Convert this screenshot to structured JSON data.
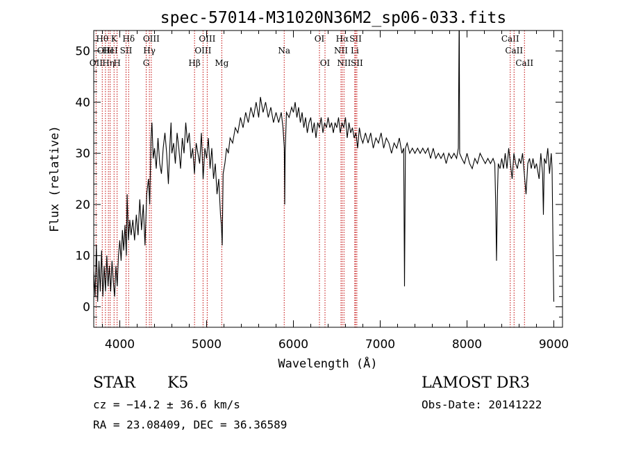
{
  "chart_data": {
    "type": "line",
    "title": "spec-57014-M31020N36M2_sp06-033.fits",
    "xlabel": "Wavelength (Å)",
    "ylabel": "Flux (relative)",
    "xlim": [
      3700,
      9100
    ],
    "ylim": [
      -4,
      54
    ],
    "xticks": [
      {
        "value": 4000,
        "label": "4000"
      },
      {
        "value": 5000,
        "label": "5000"
      },
      {
        "value": 6000,
        "label": "6000"
      },
      {
        "value": 7000,
        "label": "7000"
      },
      {
        "value": 8000,
        "label": "8000"
      },
      {
        "value": 9000,
        "label": "9000"
      }
    ],
    "yticks": [
      {
        "value": 0,
        "label": "0"
      },
      {
        "value": 10,
        "label": "10"
      },
      {
        "value": 20,
        "label": "20"
      },
      {
        "value": 30,
        "label": "30"
      },
      {
        "value": 40,
        "label": "40"
      },
      {
        "value": 50,
        "label": "50"
      }
    ],
    "spectral_lines": [
      {
        "wavelength": 3727,
        "label": "OII",
        "row": 2
      },
      {
        "wavelength": 3798,
        "label": "Hθ",
        "row": 0
      },
      {
        "wavelength": 3835,
        "label": "OIII",
        "row": 1
      },
      {
        "wavelength": 3869,
        "label": "Hη",
        "row": 2
      },
      {
        "wavelength": 3889,
        "label": "HeI",
        "row": 1
      },
      {
        "wavelength": 3934,
        "label": "K",
        "row": 0
      },
      {
        "wavelength": 3969,
        "label": "H",
        "row": 2
      },
      {
        "wavelength": 4072,
        "label": "SII",
        "row": 1
      },
      {
        "wavelength": 4102,
        "label": "Hδ",
        "row": 0
      },
      {
        "wavelength": 4304,
        "label": "G",
        "row": 2
      },
      {
        "wavelength": 4341,
        "label": "Hγ",
        "row": 1
      },
      {
        "wavelength": 4363,
        "label": "OIII",
        "row": 0
      },
      {
        "wavelength": 4861,
        "label": "Hβ",
        "row": 2
      },
      {
        "wavelength": 4959,
        "label": "OIII",
        "row": 1
      },
      {
        "wavelength": 5007,
        "label": "OIII",
        "row": 0
      },
      {
        "wavelength": 5175,
        "label": "Mg",
        "row": 2
      },
      {
        "wavelength": 5894,
        "label": "Na",
        "row": 1
      },
      {
        "wavelength": 6300,
        "label": "OI",
        "row": 0
      },
      {
        "wavelength": 6364,
        "label": "OI",
        "row": 2
      },
      {
        "wavelength": 6548,
        "label": "NII",
        "row": 1
      },
      {
        "wavelength": 6563,
        "label": "Hα",
        "row": 0
      },
      {
        "wavelength": 6583,
        "label": "NII",
        "row": 2
      },
      {
        "wavelength": 6707,
        "label": "Li",
        "row": 1
      },
      {
        "wavelength": 6716,
        "label": "SII",
        "row": 0
      },
      {
        "wavelength": 6731,
        "label": "SII",
        "row": 2
      },
      {
        "wavelength": 8498,
        "label": "CaII",
        "row": 0
      },
      {
        "wavelength": 8542,
        "label": "CaII",
        "row": 1
      },
      {
        "wavelength": 8662,
        "label": "CaII",
        "row": 2
      }
    ],
    "series": [
      {
        "name": "flux",
        "points": [
          [
            3700,
            7
          ],
          [
            3715,
            2
          ],
          [
            3730,
            12
          ],
          [
            3745,
            1
          ],
          [
            3760,
            9
          ],
          [
            3775,
            3
          ],
          [
            3790,
            11
          ],
          [
            3805,
            2
          ],
          [
            3820,
            8
          ],
          [
            3835,
            3
          ],
          [
            3850,
            10
          ],
          [
            3865,
            4
          ],
          [
            3880,
            8
          ],
          [
            3895,
            3
          ],
          [
            3910,
            9
          ],
          [
            3925,
            5
          ],
          [
            3940,
            2
          ],
          [
            3955,
            8
          ],
          [
            3970,
            4
          ],
          [
            3985,
            10
          ],
          [
            4000,
            13
          ],
          [
            4015,
            9
          ],
          [
            4030,
            15
          ],
          [
            4045,
            11
          ],
          [
            4060,
            16
          ],
          [
            4075,
            10
          ],
          [
            4085,
            22
          ],
          [
            4100,
            13
          ],
          [
            4115,
            17
          ],
          [
            4130,
            14
          ],
          [
            4150,
            17
          ],
          [
            4170,
            13
          ],
          [
            4190,
            18
          ],
          [
            4210,
            14
          ],
          [
            4230,
            21
          ],
          [
            4250,
            15
          ],
          [
            4270,
            20
          ],
          [
            4290,
            12
          ],
          [
            4310,
            22
          ],
          [
            4330,
            25
          ],
          [
            4345,
            20
          ],
          [
            4360,
            33
          ],
          [
            4370,
            36
          ],
          [
            4385,
            29
          ],
          [
            4400,
            31
          ],
          [
            4420,
            27
          ],
          [
            4440,
            33
          ],
          [
            4460,
            28
          ],
          [
            4480,
            26
          ],
          [
            4500,
            31
          ],
          [
            4520,
            34
          ],
          [
            4540,
            30
          ],
          [
            4560,
            24
          ],
          [
            4575,
            31
          ],
          [
            4590,
            36
          ],
          [
            4600,
            30
          ],
          [
            4620,
            32
          ],
          [
            4640,
            28
          ],
          [
            4660,
            34
          ],
          [
            4680,
            31
          ],
          [
            4700,
            27
          ],
          [
            4720,
            33
          ],
          [
            4740,
            30
          ],
          [
            4760,
            36
          ],
          [
            4780,
            32
          ],
          [
            4800,
            34
          ],
          [
            4820,
            29
          ],
          [
            4840,
            31
          ],
          [
            4860,
            26
          ],
          [
            4880,
            32
          ],
          [
            4900,
            30
          ],
          [
            4920,
            28
          ],
          [
            4940,
            34
          ],
          [
            4960,
            25
          ],
          [
            4980,
            31
          ],
          [
            5000,
            29
          ],
          [
            5020,
            33
          ],
          [
            5040,
            27
          ],
          [
            5060,
            31
          ],
          [
            5080,
            25
          ],
          [
            5100,
            28
          ],
          [
            5120,
            22
          ],
          [
            5140,
            25
          ],
          [
            5160,
            18
          ],
          [
            5170,
            16
          ],
          [
            5180,
            12
          ],
          [
            5190,
            26
          ],
          [
            5210,
            28
          ],
          [
            5230,
            31
          ],
          [
            5250,
            30
          ],
          [
            5270,
            33
          ],
          [
            5300,
            32
          ],
          [
            5330,
            35
          ],
          [
            5360,
            34
          ],
          [
            5390,
            37
          ],
          [
            5420,
            35
          ],
          [
            5450,
            38
          ],
          [
            5480,
            36
          ],
          [
            5510,
            39
          ],
          [
            5540,
            37
          ],
          [
            5570,
            40
          ],
          [
            5600,
            37
          ],
          [
            5620,
            41
          ],
          [
            5650,
            38
          ],
          [
            5680,
            40
          ],
          [
            5710,
            37
          ],
          [
            5740,
            39
          ],
          [
            5770,
            36
          ],
          [
            5800,
            38
          ],
          [
            5830,
            36
          ],
          [
            5860,
            38
          ],
          [
            5880,
            35
          ],
          [
            5895,
            31
          ],
          [
            5900,
            20
          ],
          [
            5905,
            30
          ],
          [
            5920,
            38
          ],
          [
            5950,
            37
          ],
          [
            5980,
            39
          ],
          [
            6000,
            38
          ],
          [
            6020,
            40
          ],
          [
            6040,
            37
          ],
          [
            6060,
            39
          ],
          [
            6080,
            36
          ],
          [
            6100,
            38
          ],
          [
            6120,
            35
          ],
          [
            6140,
            37
          ],
          [
            6160,
            34
          ],
          [
            6180,
            36
          ],
          [
            6200,
            37
          ],
          [
            6220,
            34
          ],
          [
            6240,
            36
          ],
          [
            6260,
            33
          ],
          [
            6280,
            36
          ],
          [
            6300,
            35
          ],
          [
            6320,
            37
          ],
          [
            6340,
            34
          ],
          [
            6360,
            36
          ],
          [
            6380,
            35
          ],
          [
            6400,
            37
          ],
          [
            6420,
            35
          ],
          [
            6440,
            36
          ],
          [
            6460,
            34
          ],
          [
            6480,
            36
          ],
          [
            6500,
            35
          ],
          [
            6520,
            37
          ],
          [
            6540,
            34
          ],
          [
            6560,
            36
          ],
          [
            6580,
            35
          ],
          [
            6600,
            37
          ],
          [
            6620,
            33
          ],
          [
            6640,
            36
          ],
          [
            6660,
            34
          ],
          [
            6680,
            35
          ],
          [
            6700,
            33
          ],
          [
            6720,
            34
          ],
          [
            6740,
            31
          ],
          [
            6760,
            35
          ],
          [
            6780,
            33
          ],
          [
            6800,
            32
          ],
          [
            6830,
            34
          ],
          [
            6860,
            32
          ],
          [
            6890,
            34
          ],
          [
            6920,
            31
          ],
          [
            6950,
            33
          ],
          [
            6980,
            32
          ],
          [
            7010,
            34
          ],
          [
            7040,
            31
          ],
          [
            7070,
            33
          ],
          [
            7100,
            32
          ],
          [
            7130,
            30
          ],
          [
            7160,
            32
          ],
          [
            7190,
            31
          ],
          [
            7220,
            33
          ],
          [
            7250,
            30
          ],
          [
            7270,
            31
          ],
          [
            7280,
            4
          ],
          [
            7290,
            31
          ],
          [
            7310,
            32
          ],
          [
            7340,
            30
          ],
          [
            7370,
            31
          ],
          [
            7400,
            30
          ],
          [
            7430,
            31
          ],
          [
            7460,
            30
          ],
          [
            7490,
            31
          ],
          [
            7520,
            30
          ],
          [
            7550,
            31
          ],
          [
            7580,
            29
          ],
          [
            7610,
            31
          ],
          [
            7640,
            29
          ],
          [
            7670,
            30
          ],
          [
            7700,
            29
          ],
          [
            7730,
            30
          ],
          [
            7760,
            28
          ],
          [
            7790,
            30
          ],
          [
            7820,
            29
          ],
          [
            7850,
            30
          ],
          [
            7880,
            29
          ],
          [
            7900,
            31
          ],
          [
            7910,
            58
          ],
          [
            7915,
            30
          ],
          [
            7940,
            29
          ],
          [
            7970,
            28
          ],
          [
            8000,
            30
          ],
          [
            8030,
            28
          ],
          [
            8060,
            27
          ],
          [
            8090,
            29
          ],
          [
            8120,
            28
          ],
          [
            8150,
            30
          ],
          [
            8180,
            29
          ],
          [
            8210,
            28
          ],
          [
            8240,
            29
          ],
          [
            8270,
            28
          ],
          [
            8300,
            29
          ],
          [
            8320,
            28
          ],
          [
            8330,
            20
          ],
          [
            8340,
            9
          ],
          [
            8350,
            22
          ],
          [
            8360,
            28
          ],
          [
            8380,
            27
          ],
          [
            8400,
            29
          ],
          [
            8420,
            27
          ],
          [
            8440,
            30
          ],
          [
            8460,
            27
          ],
          [
            8480,
            31
          ],
          [
            8500,
            28
          ],
          [
            8520,
            25
          ],
          [
            8540,
            30
          ],
          [
            8560,
            28
          ],
          [
            8580,
            27
          ],
          [
            8600,
            29
          ],
          [
            8620,
            28
          ],
          [
            8640,
            30
          ],
          [
            8660,
            26
          ],
          [
            8680,
            22
          ],
          [
            8700,
            28
          ],
          [
            8720,
            29
          ],
          [
            8740,
            27
          ],
          [
            8760,
            29
          ],
          [
            8780,
            27
          ],
          [
            8800,
            28
          ],
          [
            8830,
            25
          ],
          [
            8850,
            30
          ],
          [
            8870,
            26
          ],
          [
            8880,
            18
          ],
          [
            8890,
            29
          ],
          [
            8910,
            28
          ],
          [
            8930,
            31
          ],
          [
            8950,
            26
          ],
          [
            8970,
            30
          ],
          [
            8980,
            27
          ],
          [
            8990,
            12
          ],
          [
            9000,
            1
          ]
        ]
      }
    ]
  },
  "info": {
    "object_class": "STAR",
    "subclass": "K5",
    "survey": "LAMOST DR3",
    "redshift_text": "cz = −14.2 ± 36.6 km/s",
    "obs_date_text": "Obs-Date: 20141222",
    "coords_text": "RA =  23.08409, DEC =  36.36589"
  }
}
